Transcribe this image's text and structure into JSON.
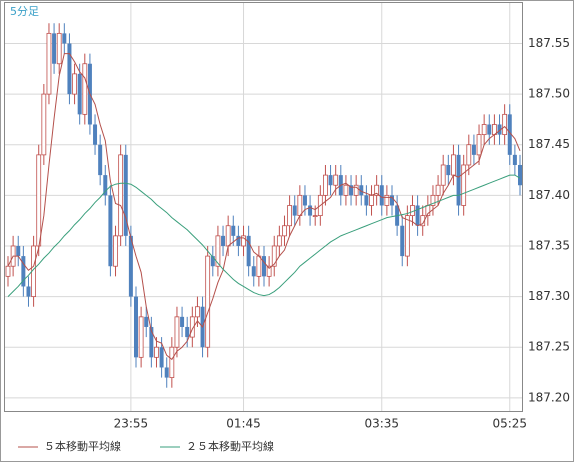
{
  "chart_data": {
    "type": "candlestick",
    "title": "5分足",
    "categories": [
      null,
      null,
      null,
      null,
      null,
      null,
      null,
      null,
      null,
      null,
      null,
      null,
      null,
      null,
      null,
      null,
      null,
      null,
      null,
      null,
      null,
      null,
      null,
      null,
      "23:55",
      null,
      null,
      null,
      null,
      null,
      null,
      null,
      null,
      null,
      null,
      null,
      null,
      null,
      null,
      null,
      null,
      null,
      null,
      null,
      null,
      null,
      "01:45",
      null,
      null,
      null,
      null,
      null,
      null,
      null,
      null,
      null,
      null,
      null,
      null,
      null,
      null,
      null,
      null,
      null,
      null,
      null,
      null,
      null,
      null,
      null,
      null,
      null,
      null,
      "03:35",
      null,
      null,
      null,
      null,
      null,
      null,
      null,
      null,
      null,
      null,
      null,
      null,
      null,
      null,
      null,
      null,
      null,
      null,
      null,
      null,
      null,
      null,
      null,
      null,
      "05:25",
      null,
      null
    ],
    "open": [
      187.32,
      187.33,
      187.35,
      187.34,
      187.31,
      187.3,
      187.35,
      187.44,
      187.5,
      187.56,
      187.53,
      187.56,
      187.55,
      187.5,
      187.52,
      187.48,
      187.53,
      187.47,
      187.45,
      187.42,
      187.4,
      187.33,
      187.36,
      187.44,
      187.36,
      187.3,
      187.24,
      187.28,
      187.27,
      187.24,
      187.25,
      187.23,
      187.22,
      187.25,
      187.28,
      187.27,
      187.26,
      187.28,
      187.29,
      187.25,
      187.34,
      187.33,
      187.36,
      187.35,
      187.37,
      187.36,
      187.35,
      187.36,
      187.33,
      187.32,
      187.34,
      187.32,
      187.33,
      187.35,
      187.36,
      187.37,
      187.39,
      187.38,
      187.4,
      187.39,
      187.38,
      187.38,
      187.4,
      187.42,
      187.41,
      187.42,
      187.4,
      187.41,
      187.4,
      187.41,
      187.4,
      187.39,
      187.4,
      187.41,
      187.39,
      187.4,
      187.39,
      187.37,
      187.34,
      187.38,
      187.39,
      187.37,
      187.38,
      187.39,
      187.4,
      187.41,
      187.43,
      187.42,
      187.44,
      187.39,
      187.43,
      187.45,
      187.44,
      187.46,
      187.47,
      187.46,
      187.47,
      187.46,
      187.48,
      187.44,
      187.43
    ],
    "high": [
      187.34,
      187.36,
      187.36,
      187.35,
      187.32,
      187.36,
      187.45,
      187.51,
      187.57,
      187.57,
      187.57,
      187.57,
      187.56,
      187.53,
      187.53,
      187.54,
      187.54,
      187.48,
      187.46,
      187.43,
      187.41,
      187.37,
      187.45,
      187.45,
      187.37,
      187.31,
      187.29,
      187.29,
      187.28,
      187.26,
      187.26,
      187.24,
      187.26,
      187.29,
      187.29,
      187.28,
      187.29,
      187.3,
      187.3,
      187.35,
      187.35,
      187.37,
      187.37,
      187.38,
      187.38,
      187.37,
      187.37,
      187.37,
      187.34,
      187.35,
      187.35,
      187.34,
      187.36,
      187.37,
      187.38,
      187.4,
      187.4,
      187.41,
      187.41,
      187.4,
      187.39,
      187.41,
      187.43,
      187.43,
      187.43,
      187.43,
      187.42,
      187.42,
      187.42,
      187.42,
      187.41,
      187.41,
      187.42,
      187.42,
      187.41,
      187.41,
      187.4,
      187.38,
      187.39,
      187.4,
      187.4,
      187.39,
      187.4,
      187.41,
      187.42,
      187.44,
      187.44,
      187.45,
      187.45,
      187.44,
      187.46,
      187.46,
      187.47,
      187.48,
      187.48,
      187.48,
      187.48,
      187.49,
      187.49,
      187.45,
      187.44
    ],
    "low": [
      187.31,
      187.32,
      187.33,
      187.3,
      187.29,
      187.29,
      187.34,
      187.43,
      187.49,
      187.52,
      187.52,
      187.54,
      187.49,
      187.49,
      187.47,
      187.47,
      187.46,
      187.44,
      187.41,
      187.39,
      187.32,
      187.32,
      187.35,
      187.35,
      187.29,
      187.23,
      187.23,
      187.26,
      187.23,
      187.23,
      187.22,
      187.21,
      187.21,
      187.24,
      187.26,
      187.25,
      187.25,
      187.27,
      187.24,
      187.24,
      187.32,
      187.32,
      187.34,
      187.34,
      187.35,
      187.34,
      187.34,
      187.32,
      187.31,
      187.31,
      187.31,
      187.31,
      187.32,
      187.34,
      187.35,
      187.36,
      187.37,
      187.37,
      187.38,
      187.37,
      187.37,
      187.37,
      187.39,
      187.4,
      187.4,
      187.39,
      187.39,
      187.39,
      187.39,
      187.39,
      187.38,
      187.38,
      187.39,
      187.38,
      187.38,
      187.38,
      187.36,
      187.33,
      187.33,
      187.37,
      187.36,
      187.36,
      187.37,
      187.38,
      187.39,
      187.4,
      187.41,
      187.41,
      187.38,
      187.38,
      187.42,
      187.43,
      187.43,
      187.45,
      187.45,
      187.45,
      187.45,
      187.45,
      187.43,
      187.42,
      187.4
    ],
    "close": [
      187.33,
      187.35,
      187.34,
      187.31,
      187.3,
      187.35,
      187.44,
      187.5,
      187.56,
      187.53,
      187.56,
      187.55,
      187.5,
      187.52,
      187.48,
      187.53,
      187.47,
      187.45,
      187.42,
      187.4,
      187.33,
      187.36,
      187.44,
      187.36,
      187.3,
      187.24,
      187.28,
      187.27,
      187.24,
      187.25,
      187.23,
      187.22,
      187.25,
      187.28,
      187.27,
      187.26,
      187.28,
      187.29,
      187.25,
      187.34,
      187.33,
      187.36,
      187.35,
      187.37,
      187.36,
      187.35,
      187.36,
      187.33,
      187.32,
      187.34,
      187.32,
      187.33,
      187.35,
      187.36,
      187.37,
      187.39,
      187.38,
      187.4,
      187.39,
      187.38,
      187.38,
      187.4,
      187.42,
      187.41,
      187.42,
      187.4,
      187.41,
      187.4,
      187.41,
      187.4,
      187.39,
      187.4,
      187.41,
      187.39,
      187.4,
      187.39,
      187.37,
      187.34,
      187.38,
      187.39,
      187.37,
      187.38,
      187.39,
      187.4,
      187.41,
      187.43,
      187.42,
      187.44,
      187.39,
      187.43,
      187.45,
      187.44,
      187.46,
      187.47,
      187.46,
      187.47,
      187.46,
      187.48,
      187.44,
      187.43,
      187.41
    ],
    "up_color": "#c0504d",
    "down_color": "#4f81bd",
    "series": [
      {
        "name": "５本移動平均線",
        "color": "#b4504b",
        "values": [
          187.33,
          187.34,
          187.34,
          187.3325,
          187.326,
          187.33,
          187.348,
          187.38,
          187.43,
          187.476,
          187.518,
          187.54,
          187.54,
          187.532,
          187.522,
          187.516,
          187.5,
          187.49,
          187.47,
          187.454,
          187.414,
          187.392,
          187.39,
          187.378,
          187.358,
          187.34,
          187.324,
          187.29,
          187.266,
          187.256,
          187.254,
          187.242,
          187.238,
          187.246,
          187.25,
          187.256,
          187.268,
          187.276,
          187.27,
          187.284,
          187.298,
          187.314,
          187.326,
          187.35,
          187.354,
          187.358,
          187.358,
          187.354,
          187.344,
          187.34,
          187.334,
          187.328,
          187.332,
          187.34,
          187.346,
          187.36,
          187.37,
          187.38,
          187.386,
          187.388,
          187.386,
          187.39,
          187.394,
          187.398,
          187.406,
          187.41,
          187.412,
          187.408,
          187.408,
          187.404,
          187.402,
          187.4,
          187.402,
          187.398,
          187.398,
          187.398,
          187.392,
          187.378,
          187.376,
          187.374,
          187.37,
          187.372,
          187.382,
          187.386,
          187.39,
          187.402,
          187.41,
          187.42,
          187.418,
          187.422,
          187.426,
          187.43,
          187.434,
          187.45,
          187.456,
          187.46,
          187.464,
          187.468,
          187.462,
          187.456,
          187.444
        ]
      },
      {
        "name": "２５本移動平均線",
        "color": "#3a9f7c",
        "values": [
          187.3,
          187.305,
          187.31,
          187.316,
          187.321,
          187.327,
          187.332,
          187.338,
          187.343,
          187.349,
          187.354,
          187.36,
          187.365,
          187.371,
          187.376,
          187.382,
          187.387,
          187.393,
          187.398,
          187.404,
          187.409,
          187.411,
          187.412,
          187.412,
          187.411,
          187.408,
          187.404,
          187.4,
          187.396,
          187.391,
          187.387,
          187.383,
          187.378,
          187.374,
          187.37,
          187.366,
          187.361,
          187.356,
          187.351,
          187.345,
          187.339,
          187.333,
          187.327,
          187.322,
          187.317,
          187.313,
          187.31,
          187.307,
          187.304,
          187.302,
          187.301,
          187.302,
          187.305,
          187.309,
          187.314,
          187.319,
          187.324,
          187.33,
          187.334,
          187.338,
          187.342,
          187.346,
          187.35,
          187.354,
          187.357,
          187.36,
          187.362,
          187.364,
          187.366,
          187.368,
          187.37,
          187.372,
          187.374,
          187.376,
          187.378,
          187.379,
          187.38,
          187.381,
          187.382,
          187.384,
          187.386,
          187.388,
          187.39,
          187.392,
          187.394,
          187.396,
          187.398,
          187.4,
          187.4,
          187.402,
          187.404,
          187.406,
          187.408,
          187.41,
          187.412,
          187.414,
          187.416,
          187.418,
          187.42,
          187.42,
          187.417
        ]
      }
    ],
    "ylim": [
      187.187,
      187.59
    ],
    "yticks": [
      {
        "value": 187.2,
        "label": "187.20"
      },
      187.25,
      {
        "value": 187.3,
        "label": "187.30"
      },
      187.35,
      {
        "value": 187.4,
        "label": "187.40"
      },
      187.45,
      {
        "value": 187.5,
        "label": "187.50"
      },
      187.55
    ],
    "grid": true
  }
}
